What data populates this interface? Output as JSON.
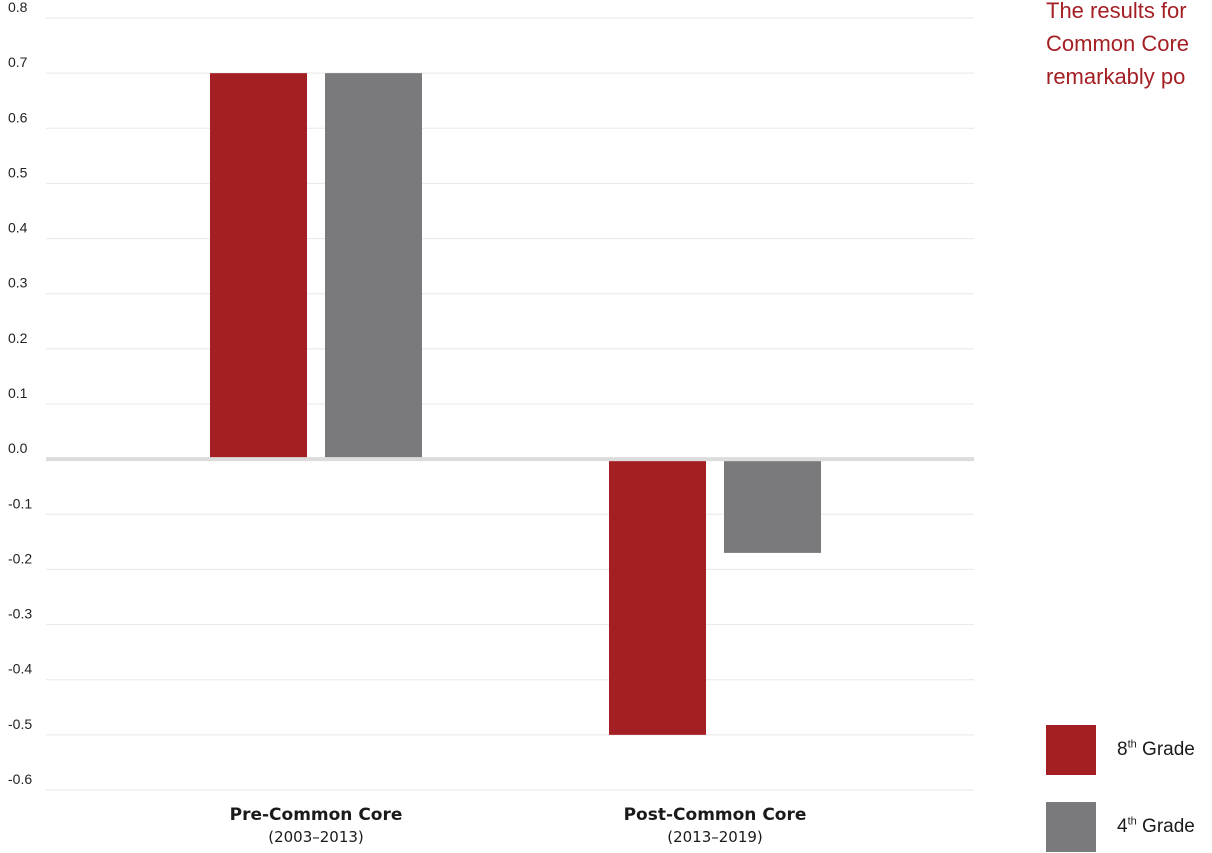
{
  "chart_data": {
    "type": "bar",
    "categories": [
      "Pre-Common Core",
      "Post-Common Core"
    ],
    "category_sublabels": [
      "(2003–2013)",
      "(2013–2019)"
    ],
    "series": [
      {
        "name": "8th Grade",
        "color": "#a41f24",
        "values": [
          0.7,
          -0.5
        ]
      },
      {
        "name": "4th Grade",
        "color": "#7a7a7c",
        "values": [
          0.7,
          -0.17
        ]
      }
    ],
    "y_ticks": [
      "0.8",
      "0.7",
      "0.6",
      "0.5",
      "0.4",
      "0.3",
      "0.2",
      "0.1",
      "0.0",
      "-0.1",
      "-0.2",
      "-0.3",
      "-0.4",
      "-0.5",
      "-0.6"
    ],
    "ylim": [
      -0.6,
      0.8
    ],
    "grid": true,
    "legend_position": "bottom-right",
    "annotation_lines": [
      "The results for",
      "Common Core",
      "remarkably po"
    ]
  },
  "legend": {
    "items": [
      {
        "base": "8",
        "sup": "th",
        "rest": " Grade",
        "color": "#a41f24"
      },
      {
        "base": "4",
        "sup": "th",
        "rest": " Grade",
        "color": "#7a7a7c"
      }
    ]
  }
}
